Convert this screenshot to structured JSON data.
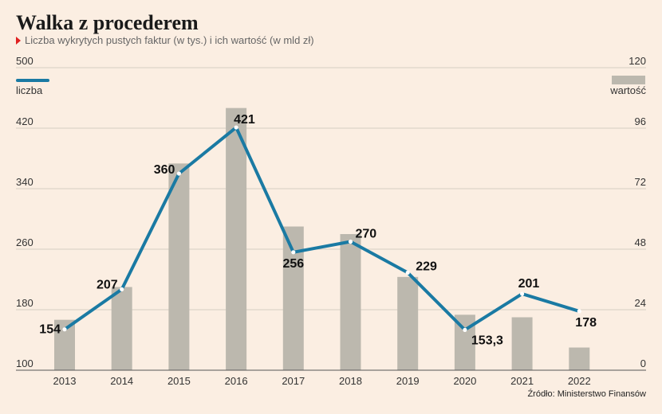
{
  "title": "Walka z procederem",
  "subtitle": "Liczba wykrytych pustych faktur (w tys.) i ich wartość (w mld zł)",
  "source": "Źródło: Ministerstwo Finansów",
  "chart_data": {
    "type": "bar+line",
    "categories": [
      "2013",
      "2014",
      "2015",
      "2016",
      "2017",
      "2018",
      "2019",
      "2020",
      "2021",
      "2022"
    ],
    "series": [
      {
        "name": "liczba",
        "type": "line",
        "axis": "left",
        "values": [
          154,
          207,
          360,
          421,
          256,
          270,
          229,
          153.3,
          201,
          178
        ],
        "labels": [
          "154",
          "207",
          "360",
          "421",
          "256",
          "270",
          "229",
          "153,3",
          "201",
          "178"
        ],
        "color": "#1a7aa3"
      },
      {
        "name": "wartość",
        "type": "bar",
        "axis": "right",
        "values": [
          20,
          33,
          82,
          104,
          57,
          54,
          37,
          22,
          21,
          9
        ],
        "color": "#bcb8ae"
      }
    ],
    "y_left": {
      "min": 100,
      "max": 500,
      "ticks": [
        100,
        180,
        260,
        340,
        420,
        500
      ]
    },
    "y_right": {
      "min": 0,
      "max": 120,
      "ticks": [
        0,
        24,
        48,
        72,
        96,
        120
      ]
    },
    "grid": true,
    "legend": {
      "left": "liczba",
      "right": "wartość",
      "placement": "top"
    }
  }
}
